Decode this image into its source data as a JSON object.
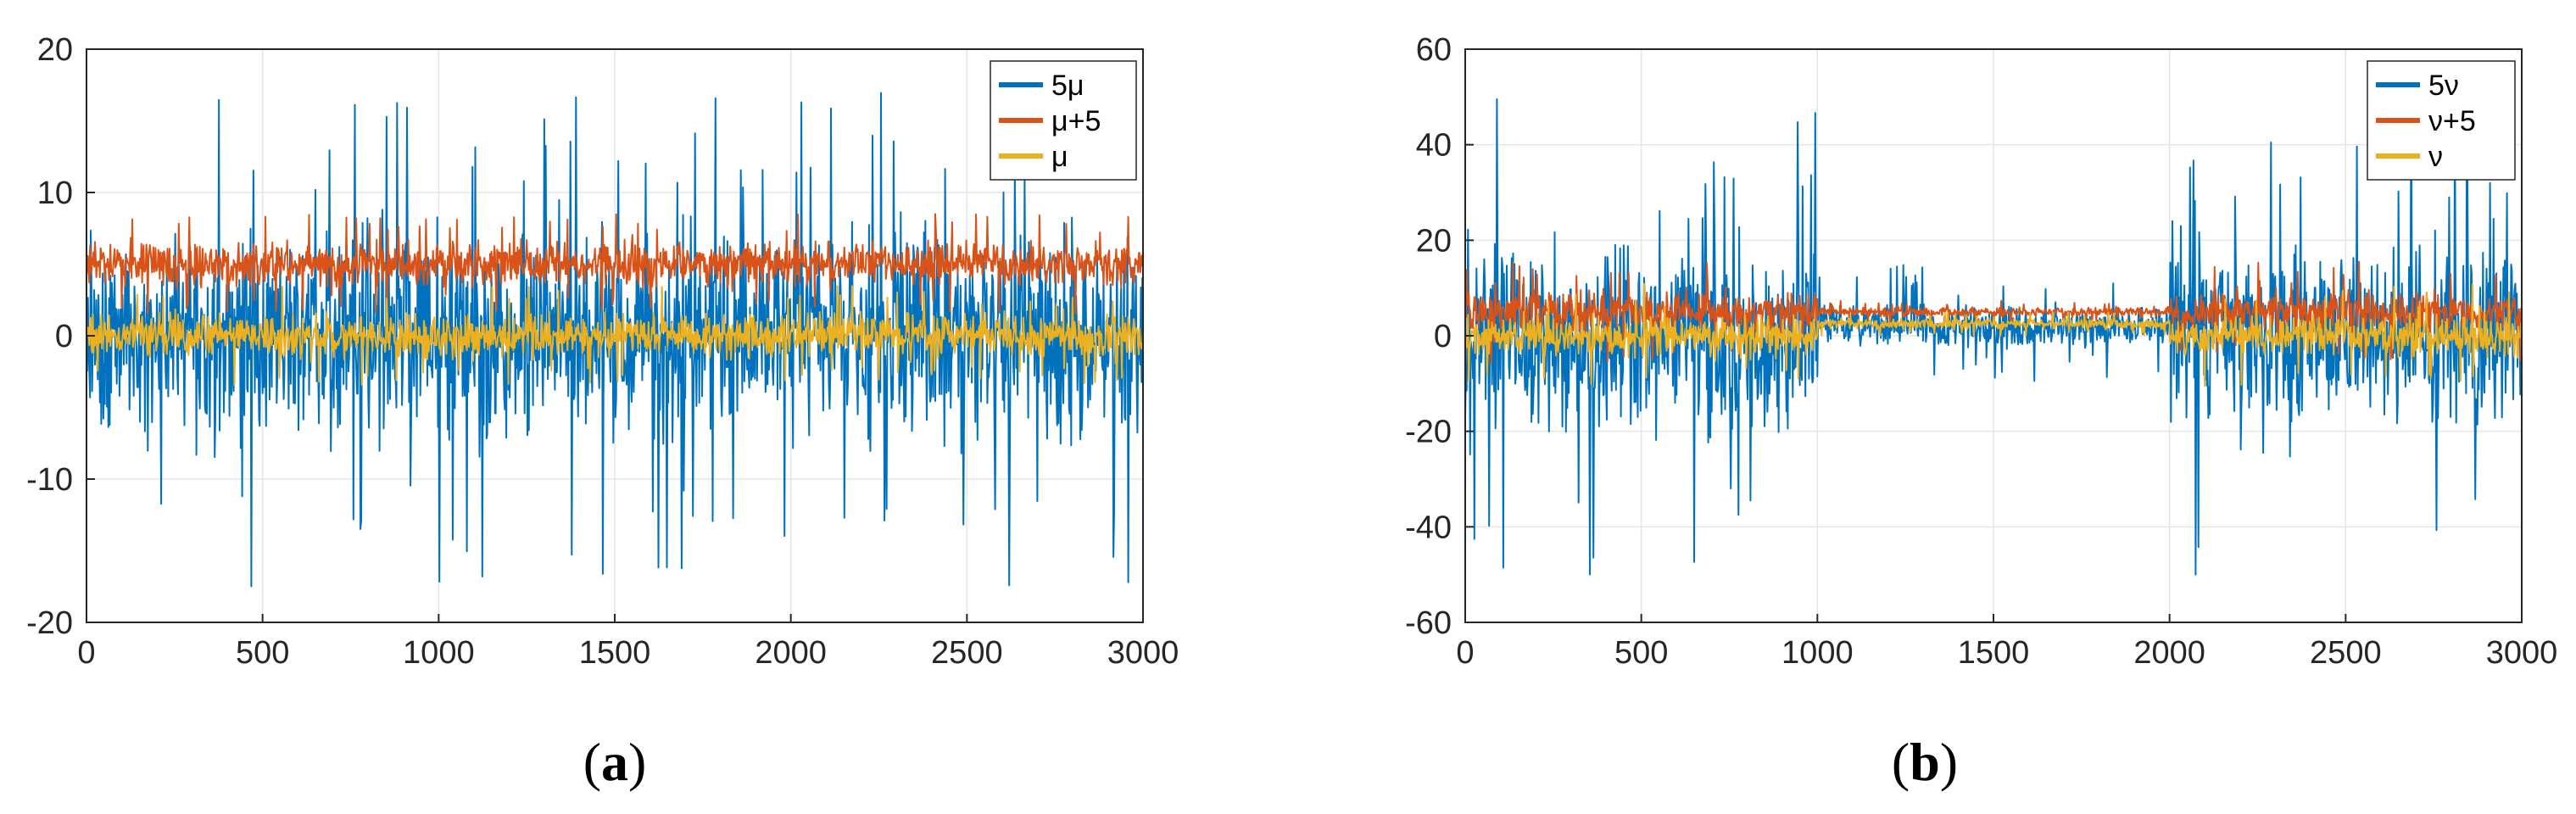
{
  "chart_data": [
    {
      "type": "line",
      "caption": {
        "open": "(",
        "letter": "a",
        "close": ")"
      },
      "x_range": [
        0,
        3000
      ],
      "ylim": [
        -20,
        20
      ],
      "x_ticks": [
        0,
        500,
        1000,
        1500,
        2000,
        2500,
        3000
      ],
      "y_ticks": [
        20,
        10,
        0,
        -10,
        -20
      ],
      "grid": true,
      "legend_position": "top-right",
      "series": [
        {
          "name": "5μ",
          "color": "#0072BD",
          "regimes": [
            {
              "from": 0,
              "to": 3000,
              "center": 0,
              "halfwidth": 10,
              "spike": 17.5
            }
          ]
        },
        {
          "name": "μ+5",
          "color": "#D95319",
          "regimes": [
            {
              "from": 0,
              "to": 3000,
              "center": 5,
              "halfwidth": 2.1,
              "spike": 3.5
            }
          ]
        },
        {
          "name": "μ",
          "color": "#EDB120",
          "regimes": [
            {
              "from": 0,
              "to": 3000,
              "center": 0,
              "halfwidth": 2.1,
              "spike": 3.5
            }
          ]
        }
      ]
    },
    {
      "type": "line",
      "caption": {
        "open": "(",
        "letter": "b",
        "close": ")"
      },
      "x_range": [
        0,
        3000
      ],
      "ylim": [
        -60,
        60
      ],
      "x_ticks": [
        0,
        500,
        1000,
        1500,
        2000,
        2500,
        3000
      ],
      "y_ticks": [
        60,
        40,
        20,
        0,
        -20,
        -40,
        -60
      ],
      "grid": true,
      "legend_position": "top-right",
      "series": [
        {
          "name": "5ν",
          "color": "#0072BD",
          "regimes": [
            {
              "from": 0,
              "to": 1000,
              "center": 0,
              "halfwidth": 28,
              "spike": 52
            },
            {
              "from": 1000,
              "to": 2000,
              "center": 2,
              "halfwidth": 6,
              "spike": 13
            },
            {
              "from": 2000,
              "to": 3000,
              "center": 0,
              "halfwidth": 28,
              "spike": 52
            }
          ]
        },
        {
          "name": "ν+5",
          "color": "#D95319",
          "regimes": [
            {
              "from": 0,
              "to": 1000,
              "center": 5,
              "halfwidth": 6,
              "spike": 11
            },
            {
              "from": 1000,
              "to": 2000,
              "center": 5,
              "halfwidth": 1.5,
              "spike": 2.5
            },
            {
              "from": 2000,
              "to": 3000,
              "center": 5,
              "halfwidth": 6,
              "spike": 11
            }
          ]
        },
        {
          "name": "ν",
          "color": "#EDB120",
          "regimes": [
            {
              "from": 0,
              "to": 1000,
              "center": 0,
              "halfwidth": 6,
              "spike": 11
            },
            {
              "from": 1000,
              "to": 2000,
              "center": 2.5,
              "halfwidth": 1.5,
              "spike": 2.5
            },
            {
              "from": 2000,
              "to": 3000,
              "center": 0,
              "halfwidth": 6,
              "spike": 11
            }
          ]
        }
      ]
    }
  ]
}
